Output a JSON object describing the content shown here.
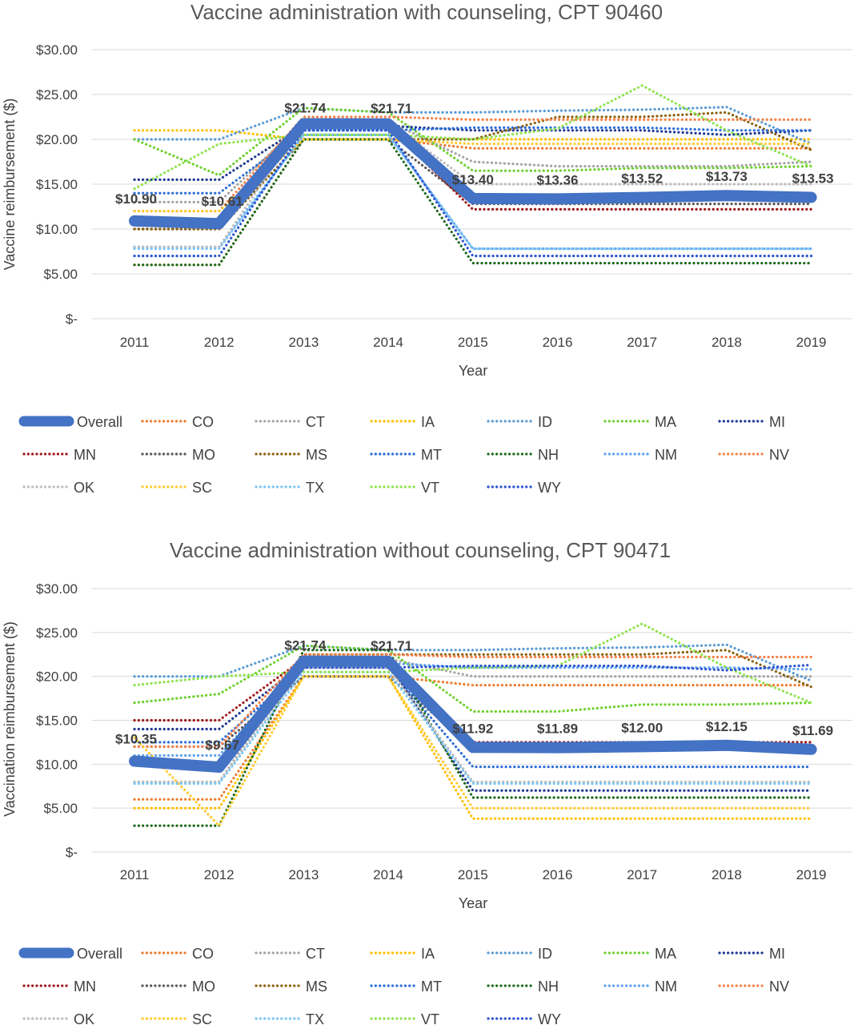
{
  "legend_series_order": [
    "Overall",
    "CO",
    "CT",
    "IA",
    "ID",
    "MA",
    "MI",
    "MN",
    "MO",
    "MS",
    "MT",
    "NH",
    "NM",
    "NV",
    "OK",
    "SC",
    "TX",
    "VT",
    "WY"
  ],
  "series_colors": {
    "Overall": "#4472c4",
    "CO": "#ed7d31",
    "CT": "#a5a5a5",
    "IA": "#ffc000",
    "ID": "#5b9bd5",
    "MA": "#70d030",
    "MI": "#1f3a93",
    "MN": "#9e1b1b",
    "MO": "#595959",
    "MS": "#8a6110",
    "MT": "#2e6fd8",
    "NH": "#1e6b1e",
    "NM": "#5ea2ef",
    "NV": "#f4824a",
    "OK": "#bdbdbd",
    "SC": "#ffcb2f",
    "TX": "#7cc6f5",
    "VT": "#8fe350",
    "WY": "#2c55d0"
  },
  "chart_data": [
    {
      "type": "line",
      "title": "Vaccine administration with counseling, CPT 90460",
      "xlabel": "Year",
      "ylabel": "Vaccine reimbursement ($)",
      "x": [
        "2011",
        "2012",
        "2013",
        "2014",
        "2015",
        "2016",
        "2017",
        "2018",
        "2019"
      ],
      "ylim": [
        0,
        30
      ],
      "y_ticks": [
        0,
        5,
        10,
        15,
        20,
        25,
        30
      ],
      "y_tick_labels": [
        "$-",
        "$5.00",
        "$10.00",
        "$15.00",
        "$20.00",
        "$25.00",
        "$30.00"
      ],
      "grid": true,
      "legend_position": "bottom",
      "series": [
        {
          "name": "CO",
          "values": [
            6,
            6,
            20,
            20,
            19,
            19,
            19,
            19,
            19
          ]
        },
        {
          "name": "CT",
          "values": [
            13,
            13,
            22,
            22,
            17.5,
            17,
            17,
            17,
            17.5
          ]
        },
        {
          "name": "IA",
          "values": [
            21,
            21,
            20,
            20,
            20,
            20,
            20,
            20,
            20
          ]
        },
        {
          "name": "ID",
          "values": [
            20,
            20,
            23.5,
            23,
            23,
            23.2,
            23.3,
            23.6,
            19.5
          ]
        },
        {
          "name": "MA",
          "values": [
            20,
            16,
            23.5,
            23,
            16.5,
            16.5,
            16.8,
            16.8,
            17
          ]
        },
        {
          "name": "MI",
          "values": [
            15.5,
            15.5,
            21.5,
            21.5,
            21,
            21,
            21,
            20.5,
            21
          ]
        },
        {
          "name": "MN",
          "values": [
            10,
            10,
            21.5,
            21.5,
            12.2,
            12.2,
            12.2,
            12.2,
            12.2
          ]
        },
        {
          "name": "MO",
          "values": [
            10,
            10,
            20,
            20,
            12.8,
            12.8,
            12.8,
            12.8,
            12.8
          ]
        },
        {
          "name": "MS",
          "values": [
            10,
            10,
            20,
            20,
            20,
            22.5,
            22.5,
            23,
            18.8
          ]
        },
        {
          "name": "MT",
          "values": [
            14,
            14,
            21,
            21,
            21.3,
            21.3,
            21.3,
            21,
            21
          ]
        },
        {
          "name": "NH",
          "values": [
            6,
            6,
            20,
            20,
            6.2,
            6.2,
            6.2,
            6.2,
            6.2
          ]
        },
        {
          "name": "NM",
          "values": [
            8,
            8,
            20.5,
            20.5,
            7.8,
            7.8,
            7.8,
            7.8,
            7.8
          ]
        },
        {
          "name": "NV",
          "values": [
            12,
            12,
            22.5,
            22.5,
            22.2,
            22.2,
            22.2,
            22.2,
            22.2
          ]
        },
        {
          "name": "OK",
          "values": [
            8,
            8,
            22,
            22,
            15,
            15,
            15,
            15,
            15
          ]
        },
        {
          "name": "SC",
          "values": [
            12,
            12,
            20,
            20,
            19.5,
            19.5,
            19.5,
            19.5,
            19.5
          ]
        },
        {
          "name": "TX",
          "values": [
            7.8,
            7.8,
            20.5,
            20.5,
            7.8,
            7.8,
            7.8,
            7.8,
            7.8
          ]
        },
        {
          "name": "VT",
          "values": [
            14.5,
            19.5,
            20.5,
            20.5,
            20,
            21.2,
            26,
            21,
            17
          ]
        },
        {
          "name": "WY",
          "values": [
            7,
            7,
            21,
            21,
            7,
            7,
            7,
            7,
            7
          ]
        },
        {
          "name": "Overall",
          "values": [
            10.9,
            10.61,
            21.74,
            21.71,
            13.4,
            13.36,
            13.52,
            13.73,
            13.53
          ]
        }
      ],
      "data_labels": [
        "$10.90",
        "$10.61",
        "$21.74",
        "$21.71",
        "$13.40",
        "$13.36",
        "$13.52",
        "$13.73",
        "$13.53"
      ]
    },
    {
      "type": "line",
      "title": "Vaccine administration without counseling, CPT 90471",
      "xlabel": "Year",
      "ylabel": "Vaccination reimbursement ($)",
      "x": [
        "2011",
        "2012",
        "2013",
        "2014",
        "2015",
        "2016",
        "2017",
        "2018",
        "2019"
      ],
      "ylim": [
        0,
        30
      ],
      "y_ticks": [
        0,
        5,
        10,
        15,
        20,
        25,
        30
      ],
      "y_tick_labels": [
        "$-",
        "$5.00",
        "$10.00",
        "$15.00",
        "$20.00",
        "$25.00",
        "$30.00"
      ],
      "grid": true,
      "legend_position": "bottom",
      "series": [
        {
          "name": "CO",
          "values": [
            6,
            6,
            20,
            20,
            19,
            19,
            19,
            19,
            19
          ]
        },
        {
          "name": "CT",
          "values": [
            8,
            8,
            22,
            22,
            20,
            20,
            20,
            20,
            20
          ]
        },
        {
          "name": "IA",
          "values": [
            5,
            5,
            20,
            20,
            3.8,
            3.8,
            3.8,
            3.8,
            3.8
          ]
        },
        {
          "name": "ID",
          "values": [
            20,
            20,
            23.5,
            23,
            23,
            23.2,
            23.3,
            23.6,
            19.5
          ]
        },
        {
          "name": "MA",
          "values": [
            17,
            18,
            23.5,
            23,
            16,
            16,
            16.8,
            16.8,
            17
          ]
        },
        {
          "name": "MI",
          "values": [
            14,
            14,
            21.5,
            21.5,
            7,
            7,
            7,
            7,
            7
          ]
        },
        {
          "name": "MN",
          "values": [
            15,
            15,
            22,
            22,
            12.5,
            12.5,
            12.5,
            12.5,
            12.5
          ]
        },
        {
          "name": "MO",
          "values": [
            12,
            12,
            20,
            20,
            12,
            12,
            12,
            12,
            12
          ]
        },
        {
          "name": "MS",
          "values": [
            10,
            10,
            22.5,
            22.5,
            22.5,
            22.5,
            22.5,
            23,
            18.8
          ]
        },
        {
          "name": "MT",
          "values": [
            12.5,
            12.5,
            21,
            21,
            9.7,
            9.7,
            9.7,
            9.7,
            9.7
          ]
        },
        {
          "name": "NH",
          "values": [
            3,
            3,
            23,
            23,
            6.2,
            6.2,
            6.2,
            6.2,
            6.2
          ]
        },
        {
          "name": "NM",
          "values": [
            11,
            11,
            21.5,
            21.5,
            21,
            21,
            21,
            21,
            20.8
          ]
        },
        {
          "name": "NV",
          "values": [
            12,
            12,
            22.5,
            22.5,
            22.2,
            22.2,
            22.2,
            22.2,
            22.2
          ]
        },
        {
          "name": "OK",
          "values": [
            8,
            8,
            21,
            21,
            8,
            8,
            8,
            8,
            8
          ]
        },
        {
          "name": "SC",
          "values": [
            13,
            3,
            20,
            20,
            5,
            5,
            5,
            5,
            5
          ]
        },
        {
          "name": "TX",
          "values": [
            7.8,
            7.8,
            20.5,
            20.5,
            7.8,
            7.8,
            7.8,
            7.8,
            7.8
          ]
        },
        {
          "name": "VT",
          "values": [
            19,
            20,
            20.5,
            20.5,
            21,
            21.2,
            26,
            21,
            17
          ]
        },
        {
          "name": "WY",
          "values": [
            10,
            10,
            21,
            21,
            21.2,
            21.2,
            21.2,
            20.7,
            21.3
          ]
        },
        {
          "name": "Overall",
          "values": [
            10.35,
            9.67,
            21.74,
            21.71,
            11.92,
            11.89,
            12.0,
            12.15,
            11.69
          ]
        }
      ],
      "data_labels": [
        "$10.35",
        "$9.67",
        "$21.74",
        "$21.71",
        "$11.92",
        "$11.89",
        "$12.00",
        "$12.15",
        "$11.69"
      ]
    }
  ]
}
